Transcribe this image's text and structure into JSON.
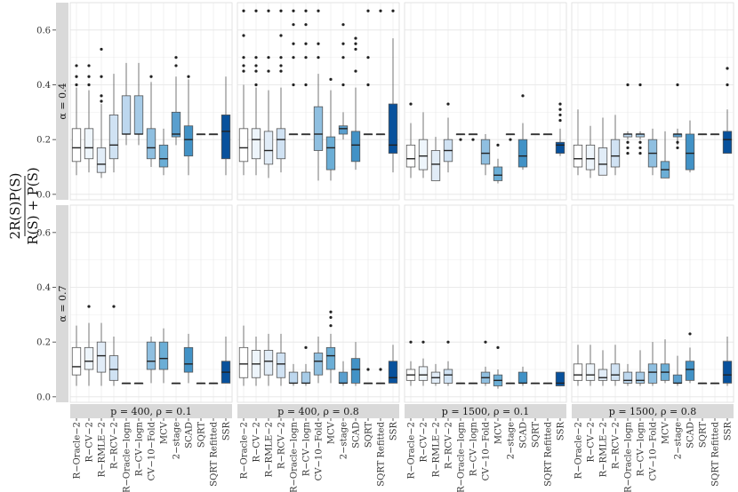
{
  "chart_data": {
    "type": "boxplot",
    "title": "",
    "xlabel": "",
    "ylabel_numerator": "2R(S)P(S)",
    "ylabel_denominator": "R(S) + P(S)",
    "ylim": [
      -0.02,
      0.7
    ],
    "yticks": [
      0.0,
      0.2,
      0.4,
      0.6
    ],
    "ytick_labels": [
      "0.0",
      "0.2",
      "0.4",
      "0.6"
    ],
    "row_strips": [
      "α = 0.4",
      "α = 0.7"
    ],
    "col_strips": [
      "p = 400, ρ = 0.1",
      "p = 400, ρ = 0.8",
      "p = 1500, ρ = 0.1",
      "p = 1500, ρ = 0.8"
    ],
    "methods": [
      "R−Oracle−2",
      "R−CV−2",
      "R−RMLE−2",
      "R−RCV−2",
      "R−Oracle−logn",
      "R−CV−logn",
      "CV−10−Fold",
      "MCV",
      "2−stage",
      "SCAD",
      "SQRT",
      "SQRT Refitted",
      "SSR"
    ],
    "method_colors": [
      "#ffffff",
      "#eef5fb",
      "#e1ecf7",
      "#d0e2f3",
      "#bdd7ee",
      "#a6cbe7",
      "#8fbfe0",
      "#6baed6",
      "#5a9fce",
      "#4292c6",
      "#2f7ebc",
      "#2171b5",
      "#08519c"
    ],
    "stats_order": [
      "whisker_low",
      "q1",
      "median",
      "q3",
      "whisker_high"
    ],
    "panels": [
      {
        "row": 0,
        "col": 0,
        "boxes": [
          [
            0.07,
            0.12,
            0.17,
            0.24,
            0.39
          ],
          [
            0.08,
            0.13,
            0.17,
            0.24,
            0.38
          ],
          [
            0.06,
            0.08,
            0.11,
            0.17,
            0.33
          ],
          [
            0.08,
            0.13,
            0.18,
            0.29,
            0.44
          ],
          [
            0.18,
            0.22,
            0.22,
            0.36,
            0.48
          ],
          [
            0.18,
            0.22,
            0.22,
            0.36,
            0.48
          ],
          [
            0.1,
            0.13,
            0.17,
            0.24,
            0.41
          ],
          [
            0.07,
            0.1,
            0.13,
            0.18,
            0.24
          ],
          [
            0.18,
            0.21,
            0.22,
            0.3,
            0.43
          ],
          [
            0.07,
            0.14,
            0.2,
            0.25,
            0.42
          ],
          [
            0.22,
            0.22,
            0.22,
            0.22,
            0.22
          ],
          [
            0.22,
            0.22,
            0.22,
            0.22,
            0.22
          ],
          [
            0.07,
            0.13,
            0.23,
            0.29,
            0.43
          ]
        ],
        "outliers": [
          [
            0.4,
            0.43,
            0.47
          ],
          [
            0.4,
            0.43,
            0.47
          ],
          [
            0.34,
            0.36,
            0.43,
            0.53
          ],
          [],
          [],
          [],
          [
            0.43
          ],
          [],
          [
            0.5,
            0.47
          ],
          [
            0.43
          ],
          [],
          [],
          []
        ]
      },
      {
        "row": 0,
        "col": 1,
        "boxes": [
          [
            0.07,
            0.12,
            0.17,
            0.24,
            0.4
          ],
          [
            0.07,
            0.13,
            0.2,
            0.24,
            0.39
          ],
          [
            0.06,
            0.11,
            0.16,
            0.23,
            0.38
          ],
          [
            0.08,
            0.13,
            0.2,
            0.24,
            0.39
          ],
          [
            0.22,
            0.22,
            0.22,
            0.22,
            0.22
          ],
          [
            0.22,
            0.22,
            0.22,
            0.22,
            0.22
          ],
          [
            0.05,
            0.16,
            0.22,
            0.32,
            0.44
          ],
          [
            0.05,
            0.09,
            0.17,
            0.21,
            0.38
          ],
          [
            0.2,
            0.22,
            0.24,
            0.25,
            0.3
          ],
          [
            0.09,
            0.12,
            0.18,
            0.23,
            0.39
          ],
          [
            0.22,
            0.22,
            0.22,
            0.22,
            0.22
          ],
          [
            0.22,
            0.22,
            0.22,
            0.22,
            0.22
          ],
          [
            0.08,
            0.15,
            0.18,
            0.33,
            0.57
          ]
        ],
        "outliers": [
          [
            0.45,
            0.47,
            0.5,
            0.58,
            0.67
          ],
          [
            0.4,
            0.45,
            0.47,
            0.5,
            0.67
          ],
          [
            0.45,
            0.5,
            0.67
          ],
          [
            0.45,
            0.47,
            0.5,
            0.58,
            0.67
          ],
          [
            0.4,
            0.5,
            0.55,
            0.62,
            0.67
          ],
          [
            0.4,
            0.5,
            0.55,
            0.62,
            0.67
          ],
          [
            0.5,
            0.55,
            0.67
          ],
          [
            0.42
          ],
          [
            0.4,
            0.5,
            0.55,
            0.62
          ],
          [
            0.45,
            0.53,
            0.55,
            0.57
          ],
          [
            0.4,
            0.5,
            0.67
          ],
          [
            0.67
          ],
          [
            0.67
          ]
        ]
      },
      {
        "row": 0,
        "col": 2,
        "boxes": [
          [
            0.06,
            0.1,
            0.13,
            0.18,
            0.26
          ],
          [
            0.06,
            0.09,
            0.14,
            0.2,
            0.3
          ],
          [
            0.05,
            0.05,
            0.11,
            0.16,
            0.21
          ],
          [
            0.08,
            0.12,
            0.16,
            0.2,
            0.28
          ],
          [
            0.22,
            0.22,
            0.22,
            0.22,
            0.22
          ],
          [
            0.22,
            0.22,
            0.22,
            0.22,
            0.22
          ],
          [
            0.07,
            0.11,
            0.15,
            0.2,
            0.22
          ],
          [
            0.04,
            0.05,
            0.07,
            0.1,
            0.13
          ],
          [
            0.22,
            0.22,
            0.22,
            0.22,
            0.22
          ],
          [
            0.09,
            0.1,
            0.14,
            0.2,
            0.26
          ],
          [
            0.22,
            0.22,
            0.22,
            0.22,
            0.22
          ],
          [
            0.22,
            0.22,
            0.22,
            0.22,
            0.22
          ],
          [
            0.14,
            0.15,
            0.18,
            0.19,
            0.24
          ]
        ],
        "outliers": [
          [
            0.33
          ],
          [],
          [],
          [
            0.33
          ],
          [
            0.2
          ],
          [
            0.2
          ],
          [],
          [
            0.18
          ],
          [
            0.2
          ],
          [
            0.36
          ],
          [],
          [],
          [
            0.27,
            0.29,
            0.31,
            0.33
          ]
        ]
      },
      {
        "row": 0,
        "col": 3,
        "boxes": [
          [
            0.07,
            0.1,
            0.13,
            0.18,
            0.31
          ],
          [
            0.06,
            0.09,
            0.13,
            0.18,
            0.25
          ],
          [
            0.07,
            0.07,
            0.11,
            0.17,
            0.28
          ],
          [
            0.07,
            0.1,
            0.14,
            0.2,
            0.29
          ],
          [
            0.2,
            0.21,
            0.22,
            0.22,
            0.23
          ],
          [
            0.2,
            0.21,
            0.22,
            0.22,
            0.23
          ],
          [
            0.07,
            0.1,
            0.15,
            0.2,
            0.24
          ],
          [
            0.06,
            0.06,
            0.09,
            0.12,
            0.23
          ],
          [
            0.18,
            0.21,
            0.22,
            0.22,
            0.24
          ],
          [
            0.08,
            0.09,
            0.15,
            0.22,
            0.27
          ],
          [
            0.22,
            0.22,
            0.22,
            0.22,
            0.22
          ],
          [
            0.22,
            0.22,
            0.22,
            0.22,
            0.22
          ],
          [
            0.15,
            0.15,
            0.2,
            0.23,
            0.31
          ]
        ],
        "outliers": [
          [],
          [],
          [],
          [],
          [
            0.15,
            0.17,
            0.19,
            0.4
          ],
          [
            0.15,
            0.17,
            0.19,
            0.4
          ],
          [],
          [],
          [
            0.17,
            0.19,
            0.4
          ],
          [],
          [],
          [],
          [
            0.4,
            0.46
          ]
        ]
      },
      {
        "row": 1,
        "col": 0,
        "boxes": [
          [
            0.04,
            0.08,
            0.11,
            0.18,
            0.26
          ],
          [
            0.04,
            0.1,
            0.13,
            0.18,
            0.27
          ],
          [
            0.04,
            0.09,
            0.15,
            0.2,
            0.27
          ],
          [
            0.04,
            0.06,
            0.1,
            0.15,
            0.22
          ],
          [
            0.05,
            0.05,
            0.05,
            0.05,
            0.05
          ],
          [
            0.05,
            0.05,
            0.05,
            0.05,
            0.05
          ],
          [
            0.05,
            0.1,
            0.13,
            0.2,
            0.22
          ],
          [
            0.05,
            0.1,
            0.14,
            0.2,
            0.25
          ],
          [
            0.05,
            0.05,
            0.05,
            0.05,
            0.05
          ],
          [
            0.05,
            0.09,
            0.12,
            0.18,
            0.23
          ],
          [
            0.05,
            0.05,
            0.05,
            0.05,
            0.05
          ],
          [
            0.05,
            0.05,
            0.05,
            0.05,
            0.05
          ],
          [
            0.05,
            0.05,
            0.09,
            0.13,
            0.22
          ]
        ],
        "outliers": [
          [],
          [
            0.33
          ],
          [],
          [
            0.33
          ],
          [],
          [],
          [],
          [],
          [],
          [],
          [],
          [],
          []
        ]
      },
      {
        "row": 1,
        "col": 1,
        "boxes": [
          [
            0.04,
            0.07,
            0.12,
            0.18,
            0.26
          ],
          [
            0.04,
            0.07,
            0.12,
            0.17,
            0.22
          ],
          [
            0.04,
            0.08,
            0.13,
            0.17,
            0.23
          ],
          [
            0.04,
            0.07,
            0.12,
            0.16,
            0.23
          ],
          [
            0.04,
            0.05,
            0.05,
            0.09,
            0.12
          ],
          [
            0.04,
            0.05,
            0.05,
            0.09,
            0.12
          ],
          [
            0.05,
            0.08,
            0.13,
            0.16,
            0.22
          ],
          [
            0.05,
            0.1,
            0.15,
            0.18,
            0.23
          ],
          [
            0.04,
            0.05,
            0.05,
            0.09,
            0.13
          ],
          [
            0.04,
            0.05,
            0.1,
            0.14,
            0.2
          ],
          [
            0.05,
            0.05,
            0.05,
            0.05,
            0.05
          ],
          [
            0.05,
            0.05,
            0.05,
            0.05,
            0.05
          ],
          [
            0.05,
            0.05,
            0.07,
            0.13,
            0.19
          ]
        ],
        "outliers": [
          [],
          [],
          [],
          [],
          [],
          [
            0.18
          ],
          [],
          [
            0.26,
            0.29,
            0.31
          ],
          [],
          [],
          [
            0.1
          ],
          [
            0.1
          ],
          []
        ]
      },
      {
        "row": 1,
        "col": 2,
        "boxes": [
          [
            0.04,
            0.06,
            0.08,
            0.1,
            0.13
          ],
          [
            0.04,
            0.06,
            0.08,
            0.11,
            0.14
          ],
          [
            0.04,
            0.05,
            0.07,
            0.09,
            0.12
          ],
          [
            0.04,
            0.05,
            0.08,
            0.1,
            0.13
          ],
          [
            0.05,
            0.05,
            0.05,
            0.05,
            0.05
          ],
          [
            0.05,
            0.05,
            0.05,
            0.05,
            0.05
          ],
          [
            0.04,
            0.05,
            0.07,
            0.09,
            0.11
          ],
          [
            0.03,
            0.04,
            0.06,
            0.08,
            0.1
          ],
          [
            0.05,
            0.05,
            0.05,
            0.05,
            0.05
          ],
          [
            0.04,
            0.05,
            0.05,
            0.09,
            0.11
          ],
          [
            0.05,
            0.05,
            0.05,
            0.05,
            0.05
          ],
          [
            0.05,
            0.05,
            0.05,
            0.05,
            0.05
          ],
          [
            0.04,
            0.04,
            0.05,
            0.09,
            0.09
          ]
        ],
        "outliers": [
          [
            0.2
          ],
          [
            0.2
          ],
          [],
          [
            0.2
          ],
          [],
          [],
          [
            0.2
          ],
          [
            0.18
          ],
          [],
          [],
          [],
          [],
          []
        ]
      },
      {
        "row": 1,
        "col": 3,
        "boxes": [
          [
            0.04,
            0.06,
            0.08,
            0.12,
            0.19
          ],
          [
            0.04,
            0.06,
            0.08,
            0.12,
            0.19
          ],
          [
            0.04,
            0.06,
            0.07,
            0.1,
            0.17
          ],
          [
            0.04,
            0.06,
            0.08,
            0.12,
            0.19
          ],
          [
            0.04,
            0.05,
            0.06,
            0.09,
            0.12
          ],
          [
            0.04,
            0.05,
            0.06,
            0.09,
            0.17
          ],
          [
            0.04,
            0.05,
            0.09,
            0.12,
            0.2
          ],
          [
            0.05,
            0.06,
            0.09,
            0.12,
            0.21
          ],
          [
            0.04,
            0.05,
            0.05,
            0.08,
            0.15
          ],
          [
            0.05,
            0.06,
            0.1,
            0.13,
            0.18
          ],
          [
            0.05,
            0.05,
            0.05,
            0.05,
            0.05
          ],
          [
            0.05,
            0.05,
            0.05,
            0.05,
            0.05
          ],
          [
            0.04,
            0.05,
            0.08,
            0.13,
            0.22
          ]
        ],
        "outliers": [
          [],
          [],
          [],
          [],
          [],
          [],
          [],
          [],
          [],
          [
            0.23
          ],
          [],
          [],
          []
        ]
      }
    ]
  }
}
